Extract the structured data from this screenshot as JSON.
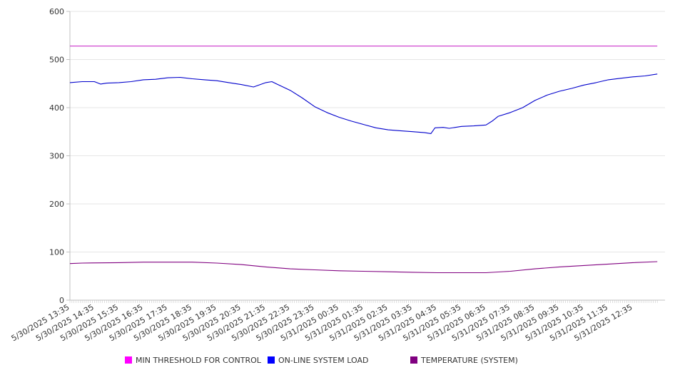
{
  "chart_data": {
    "type": "line",
    "title": "",
    "xlabel": "",
    "ylabel": "",
    "ylim": [
      0,
      600
    ],
    "y_ticks": [
      "0",
      "100",
      "200",
      "300",
      "400",
      "500",
      "600"
    ],
    "grid": true,
    "legend_position": "bottom",
    "x_tick_labels": [
      "5/30/2025 13:35",
      "5/30/2025 14:35",
      "5/30/2025 15:35",
      "5/30/2025 16:35",
      "5/30/2025 17:35",
      "5/30/2025 18:35",
      "5/30/2025 19:35",
      "5/30/2025 20:35",
      "5/30/2025 21:35",
      "5/30/2025 22:35",
      "5/30/2025 23:35",
      "5/31/2025 00:35",
      "5/31/2025 01:35",
      "5/31/2025 02:35",
      "5/31/2025 03:35",
      "5/31/2025 04:35",
      "5/31/2025 05:35",
      "5/31/2025 06:35",
      "5/31/2025 07:35",
      "5/31/2025 08:35",
      "5/31/2025 09:35",
      "5/31/2025 10:35",
      "5/31/2025 11:35",
      "5/31/2025 12:35"
    ],
    "series": [
      {
        "name": "MIN THRESHOLD FOR CONTROL",
        "color": "#cc33cc",
        "legend_color": "#ff00ff",
        "points": [
          [
            "5/30/2025 13:35",
            528
          ],
          [
            "5/31/2025 13:35",
            528
          ]
        ]
      },
      {
        "name": "ON-LINE SYSTEM LOAD",
        "color": "#0000cc",
        "legend_color": "#0000ff",
        "points": [
          [
            "5/30/2025 13:35",
            452
          ],
          [
            "5/30/2025 14:05",
            454
          ],
          [
            "5/30/2025 14:35",
            454
          ],
          [
            "5/30/2025 14:50",
            449
          ],
          [
            "5/30/2025 15:05",
            451
          ],
          [
            "5/30/2025 15:35",
            452
          ],
          [
            "5/30/2025 16:05",
            454
          ],
          [
            "5/30/2025 16:35",
            458
          ],
          [
            "5/30/2025 17:05",
            459
          ],
          [
            "5/30/2025 17:35",
            462
          ],
          [
            "5/30/2025 18:05",
            463
          ],
          [
            "5/30/2025 18:35",
            460
          ],
          [
            "5/30/2025 19:05",
            458
          ],
          [
            "5/30/2025 19:35",
            456
          ],
          [
            "5/30/2025 20:05",
            452
          ],
          [
            "5/30/2025 20:35",
            448
          ],
          [
            "5/30/2025 21:05",
            443
          ],
          [
            "5/30/2025 21:35",
            452
          ],
          [
            "5/30/2025 21:50",
            454
          ],
          [
            "5/30/2025 22:05",
            448
          ],
          [
            "5/30/2025 22:35",
            436
          ],
          [
            "5/30/2025 23:05",
            420
          ],
          [
            "5/30/2025 23:35",
            402
          ],
          [
            "5/31/2025 00:05",
            390
          ],
          [
            "5/31/2025 00:35",
            380
          ],
          [
            "5/31/2025 01:05",
            372
          ],
          [
            "5/31/2025 01:35",
            365
          ],
          [
            "5/31/2025 02:05",
            358
          ],
          [
            "5/31/2025 02:35",
            354
          ],
          [
            "5/31/2025 03:05",
            352
          ],
          [
            "5/31/2025 03:35",
            350
          ],
          [
            "5/31/2025 04:05",
            348
          ],
          [
            "5/31/2025 04:20",
            346
          ],
          [
            "5/31/2025 04:30",
            358
          ],
          [
            "5/31/2025 04:50",
            359
          ],
          [
            "5/31/2025 05:05",
            357
          ],
          [
            "5/31/2025 05:35",
            361
          ],
          [
            "5/31/2025 06:05",
            362
          ],
          [
            "5/31/2025 06:35",
            364
          ],
          [
            "5/31/2025 06:50",
            372
          ],
          [
            "5/31/2025 07:05",
            382
          ],
          [
            "5/31/2025 07:35",
            390
          ],
          [
            "5/31/2025 08:05",
            400
          ],
          [
            "5/31/2025 08:35",
            415
          ],
          [
            "5/31/2025 09:05",
            426
          ],
          [
            "5/31/2025 09:35",
            434
          ],
          [
            "5/31/2025 10:05",
            440
          ],
          [
            "5/31/2025 10:35",
            447
          ],
          [
            "5/31/2025 11:05",
            452
          ],
          [
            "5/31/2025 11:35",
            458
          ],
          [
            "5/31/2025 12:05",
            461
          ],
          [
            "5/31/2025 12:35",
            464
          ],
          [
            "5/31/2025 13:05",
            466
          ],
          [
            "5/31/2025 13:35",
            470
          ]
        ]
      },
      {
        "name": "TEMPERATURE (SYSTEM)",
        "color": "#800080",
        "legend_color": "#800080",
        "points": [
          [
            "5/30/2025 13:35",
            76
          ],
          [
            "5/30/2025 14:05",
            77
          ],
          [
            "5/30/2025 15:35",
            78
          ],
          [
            "5/30/2025 16:35",
            79
          ],
          [
            "5/30/2025 17:35",
            79
          ],
          [
            "5/30/2025 18:35",
            79
          ],
          [
            "5/30/2025 19:35",
            77
          ],
          [
            "5/30/2025 20:35",
            74
          ],
          [
            "5/30/2025 21:35",
            69
          ],
          [
            "5/30/2025 22:35",
            65
          ],
          [
            "5/30/2025 23:35",
            63
          ],
          [
            "5/31/2025 00:35",
            61
          ],
          [
            "5/31/2025 01:35",
            60
          ],
          [
            "5/31/2025 02:35",
            59
          ],
          [
            "5/31/2025 03:35",
            58
          ],
          [
            "5/31/2025 04:35",
            57
          ],
          [
            "5/31/2025 05:35",
            57
          ],
          [
            "5/31/2025 06:35",
            57
          ],
          [
            "5/31/2025 07:35",
            60
          ],
          [
            "5/31/2025 08:35",
            65
          ],
          [
            "5/31/2025 09:35",
            69
          ],
          [
            "5/31/2025 10:35",
            72
          ],
          [
            "5/31/2025 11:35",
            75
          ],
          [
            "5/31/2025 12:35",
            78
          ],
          [
            "5/31/2025 13:35",
            80
          ]
        ]
      }
    ]
  }
}
